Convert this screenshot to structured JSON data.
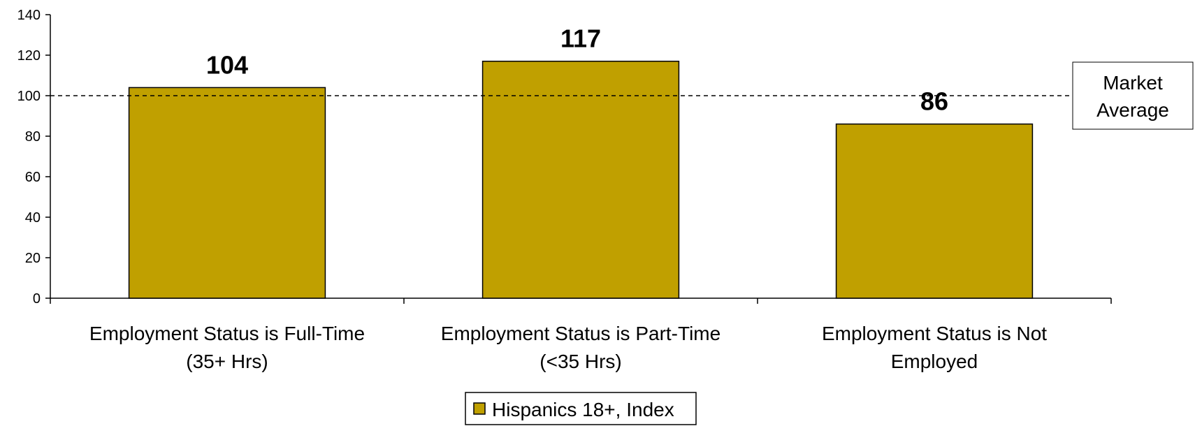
{
  "chart_data": {
    "type": "bar",
    "categories": [
      [
        "Employment Status is Full-Time",
        "(35+ Hrs)"
      ],
      [
        "Employment Status is Part-Time",
        "(<35 Hrs)"
      ],
      [
        "Employment Status is Not",
        "Employed"
      ]
    ],
    "series": [
      {
        "name": "Hispanics 18+, Index",
        "values": [
          104,
          117,
          86
        ]
      }
    ],
    "data_labels": [
      "104",
      "117",
      "86"
    ],
    "ylim": [
      0,
      140
    ],
    "yticks": [
      0,
      20,
      40,
      60,
      80,
      100,
      120,
      140
    ],
    "reference_line": {
      "value": 100,
      "label": [
        "Market",
        "Average"
      ],
      "style": "dashed"
    },
    "legend": {
      "placement": "bottom"
    },
    "grid": false,
    "colors": {
      "bar": "#C0A000",
      "bar_stroke": "#000000"
    }
  }
}
